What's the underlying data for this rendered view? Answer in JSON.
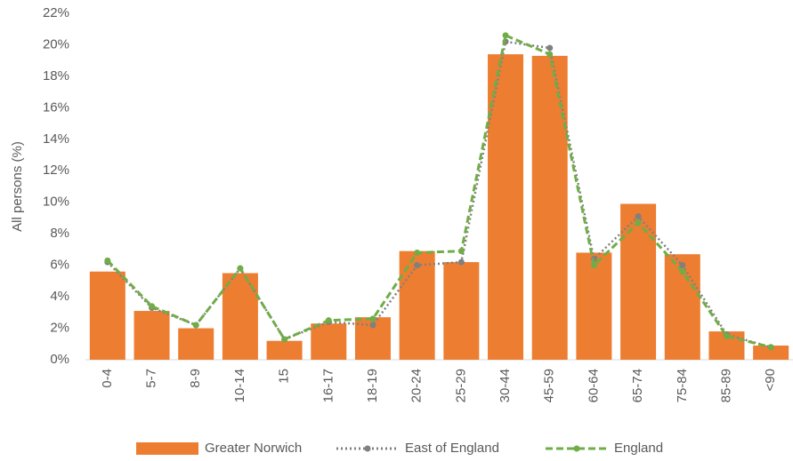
{
  "chart_data": {
    "type": "bar",
    "y_label": "All persons (%)",
    "categories": [
      "0-4",
      "5-7",
      "8-9",
      "10-14",
      "15",
      "16-17",
      "18-19",
      "20-24",
      "25-29",
      "30-44",
      "45-59",
      "60-64",
      "65-74",
      "75-84",
      "85-89",
      "<90"
    ],
    "series": [
      {
        "name": "Greater Norwich",
        "type": "bar",
        "color": "#ed7d31",
        "values": [
          5.6,
          3.1,
          2.0,
          5.5,
          1.2,
          2.3,
          2.7,
          6.9,
          6.2,
          19.4,
          19.3,
          6.8,
          9.9,
          6.7,
          1.8,
          0.9
        ]
      },
      {
        "name": "East of England",
        "type": "line",
        "style": "dotted",
        "color": "#808080",
        "values": [
          6.2,
          3.3,
          2.2,
          5.8,
          1.3,
          2.4,
          2.2,
          6.0,
          6.2,
          20.2,
          19.8,
          6.4,
          9.1,
          6.0,
          1.6,
          0.8
        ]
      },
      {
        "name": "England",
        "type": "line",
        "style": "dashed",
        "color": "#70ad47",
        "values": [
          6.3,
          3.4,
          2.2,
          5.8,
          1.3,
          2.5,
          2.6,
          6.8,
          6.9,
          20.6,
          19.4,
          6.0,
          8.7,
          5.6,
          1.5,
          0.8
        ]
      }
    ],
    "ylim": [
      0,
      22
    ],
    "yticks": [
      {
        "value": 0,
        "label": "0%"
      },
      {
        "value": 2,
        "label": "2%"
      },
      {
        "value": 4,
        "label": "4%"
      },
      {
        "value": 6,
        "label": "6%"
      },
      {
        "value": 8,
        "label": "8%"
      },
      {
        "value": 10,
        "label": "10%"
      },
      {
        "value": 12,
        "label": "12%"
      },
      {
        "value": 14,
        "label": "14%"
      },
      {
        "value": 16,
        "label": "16%"
      },
      {
        "value": 18,
        "label": "18%"
      },
      {
        "value": 20,
        "label": "20%"
      },
      {
        "value": 22,
        "label": "22%"
      }
    ],
    "legend": "bottom"
  }
}
